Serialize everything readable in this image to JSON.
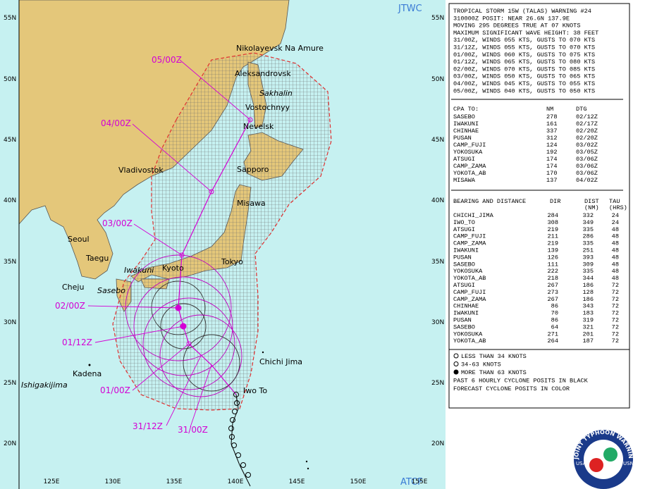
{
  "map": {
    "corner_labels": [
      "JTWC",
      "ATCF"
    ],
    "lat_labels": [
      "55N",
      "50N",
      "45N",
      "40N",
      "35N",
      "30N",
      "25N",
      "20N"
    ],
    "lon_labels": [
      "125E",
      "130E",
      "135E",
      "140E",
      "145E",
      "150E",
      "155E"
    ],
    "places": [
      "Nikolayevsk Na Amure",
      "Aleksandrovsk",
      "Sakhalin",
      "Vostochnyy",
      "Nevelsk",
      "Vladivostok",
      "Sapporo",
      "Misawa",
      "Seoul",
      "Taegu",
      "Cheju",
      "Sasebo",
      "Iwakuni",
      "Kyoto",
      "Tokyo",
      "Chichi Jima",
      "Iwo To",
      "Kadena",
      "Ishigakijima"
    ],
    "forecast_labels": [
      "05/00Z",
      "04/00Z",
      "03/00Z",
      "02/00Z",
      "01/12Z",
      "01/00Z",
      "31/12Z",
      "31/00Z"
    ]
  },
  "warning": [
    "TROPICAL STORM 15W (TALAS) WARNING #24",
    "310000Z POSIT: NEAR 26.6N 137.9E",
    "MOVING 295 DEGREES TRUE AT 07 KNOTS",
    "MAXIMUM SIGNIFICANT WAVE HEIGHT: 38 FEET",
    "31/00Z, WINDS 055 KTS, GUSTS TO 070 KTS",
    "31/12Z, WINDS 055 KTS, GUSTS TO 070 KTS",
    "01/00Z, WINDS 060 KTS, GUSTS TO 075 KTS",
    "01/12Z, WINDS 065 KTS, GUSTS TO 080 KTS",
    "02/00Z, WINDS 070 KTS, GUSTS TO 085 KTS",
    "03/00Z, WINDS 050 KTS, GUSTS TO 065 KTS",
    "04/00Z, WINDS 045 KTS, GUSTS TO 055 KTS",
    "05/00Z, WINDS 040 KTS, GUSTS TO 050 KTS"
  ],
  "cpa": {
    "header": [
      "CPA TO:",
      "NM",
      "DTG"
    ],
    "rows": [
      [
        "SASEBO",
        "278",
        "02/12Z"
      ],
      [
        "IWAKUNI",
        "161",
        "02/17Z"
      ],
      [
        "CHINHAE",
        "337",
        "02/20Z"
      ],
      [
        "PUSAN",
        "312",
        "02/20Z"
      ],
      [
        "CAMP_FUJI",
        "124",
        "03/02Z"
      ],
      [
        "YOKOSUKA",
        "192",
        "03/05Z"
      ],
      [
        "ATSUGI",
        "174",
        "03/06Z"
      ],
      [
        "CAMP_ZAMA",
        "174",
        "03/06Z"
      ],
      [
        "YOKOTA_AB",
        "170",
        "03/06Z"
      ],
      [
        "MISAWA",
        "137",
        "04/02Z"
      ]
    ]
  },
  "bearing": {
    "header": [
      "BEARING AND DISTANCE",
      "DIR",
      "DIST",
      "(NM)",
      "TAU",
      "(HRS)"
    ],
    "rows": [
      [
        "CHICHI_JIMA",
        "284",
        "332",
        "24"
      ],
      [
        "IWO_TO",
        "308",
        "349",
        "24"
      ],
      [
        "ATSUGI",
        "219",
        "335",
        "48"
      ],
      [
        "CAMP_FUJI",
        "211",
        "286",
        "48"
      ],
      [
        "CAMP_ZAMA",
        "219",
        "335",
        "48"
      ],
      [
        "IWAKUNI",
        "139",
        "251",
        "48"
      ],
      [
        "PUSAN",
        "126",
        "393",
        "48"
      ],
      [
        "SASEBO",
        "111",
        "309",
        "48"
      ],
      [
        "YOKOSUKA",
        "222",
        "335",
        "48"
      ],
      [
        "YOKOTA_AB",
        "218",
        "344",
        "48"
      ],
      [
        "ATSUGI",
        "267",
        "186",
        "72"
      ],
      [
        "CAMP_FUJI",
        "273",
        "128",
        "72"
      ],
      [
        "CAMP_ZAMA",
        "267",
        "186",
        "72"
      ],
      [
        "CHINHAE",
        "86",
        "343",
        "72"
      ],
      [
        "IWAKUNI",
        "70",
        "183",
        "72"
      ],
      [
        "PUSAN",
        "86",
        "319",
        "72"
      ],
      [
        "SASEBO",
        "64",
        "321",
        "72"
      ],
      [
        "YOKOSUKA",
        "271",
        "201",
        "72"
      ],
      [
        "YOKOTA_AB",
        "264",
        "187",
        "72"
      ]
    ]
  },
  "legend": [
    "LESS THAN 34 KNOTS",
    "34-63 KNOTS",
    "MORE THAN 63 KNOTS",
    "PAST 6 HOURLY CYCLONE POSITS IN BLACK",
    "FORECAST CYCLONE POSITS IN COLOR"
  ],
  "seal": [
    "JOINT TYPHOON WARNING CENTER",
    "USAF",
    "USN"
  ]
}
